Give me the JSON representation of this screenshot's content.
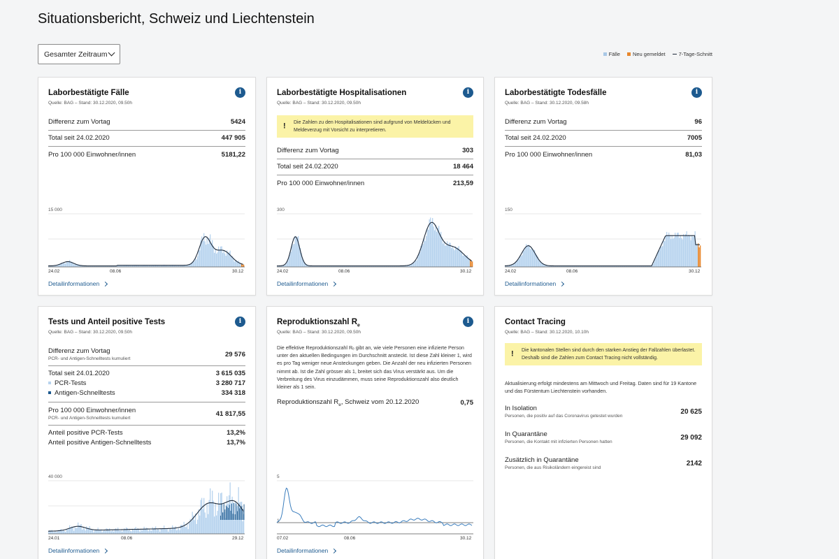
{
  "page": {
    "title": "Situationsbericht, Schweiz und Liechtenstein"
  },
  "filter": {
    "selected": "Gesamter Zeitraum"
  },
  "legend": [
    {
      "label": "Fälle",
      "color": "#a9c8e6"
    },
    {
      "label": "Neu gemeldet",
      "color": "#e8872c"
    },
    {
      "label": "7-Tage-Schnitt",
      "color": "#1e2a3a"
    }
  ],
  "colors": {
    "bar": "#b7d3ee",
    "line": "#1e2a3a",
    "new": "#e8872c",
    "accent": "#1d5a8f",
    "warning_bg": "#fbf3a7"
  },
  "detail_label": "Detailinformationen",
  "cases": {
    "title": "Laborbestätigte Fälle",
    "source": "Quelle: BAG – Stand: 30.12.2020, 09.50h",
    "rows": [
      {
        "label": "Differenz zum Vortag",
        "value": "5424"
      },
      {
        "label": "Total seit 24.02.2020",
        "value": "447 905"
      },
      {
        "label": "Pro 100 000 Einwohner/innen",
        "value": "5181,22"
      }
    ],
    "chart": {
      "ymax": "15 000",
      "x_ticks": [
        "24.02",
        "08.06",
        "30.12"
      ]
    }
  },
  "hosp": {
    "title": "Laborbestätigte Hospitalisationen",
    "source": "Quelle: BAG – Stand: 30.12.2020, 09.50h",
    "warning": "Die Zahlen zu den Hospitalisationen sind aufgrund von Meldelücken und Meldeverzug mit Vorsicht zu interpretieren.",
    "rows": [
      {
        "label": "Differenz zum Vortag",
        "value": "303"
      },
      {
        "label": "Total seit 24.02.2020",
        "value": "18 464"
      },
      {
        "label": "Pro 100 000 Einwohner/innen",
        "value": "213,59"
      }
    ],
    "chart": {
      "ymax": "300",
      "x_ticks": [
        "24.02",
        "08.06",
        "30.12"
      ]
    }
  },
  "deaths": {
    "title": "Laborbestätigte Todesfälle",
    "source": "Quelle: BAG – Stand: 30.12.2020, 09.58h",
    "rows": [
      {
        "label": "Differenz zum Vortag",
        "value": "96"
      },
      {
        "label": "Total seit 24.02.2020",
        "value": "7005"
      },
      {
        "label": "Pro 100 000 Einwohner/innen",
        "value": "81,03"
      }
    ],
    "chart": {
      "ymax": "150",
      "x_ticks": [
        "24.02",
        "08.06",
        "30.12"
      ]
    }
  },
  "tests": {
    "title": "Tests und Anteil positive Tests",
    "source": "Quelle: BAG – Stand: 30.12.2020, 09.50h",
    "diff_label": "Differenz zum Vortag",
    "diff_sub": "PCR- und Antigen-Schnelltests kumuliert",
    "diff_value": "29 576",
    "total_label": "Total seit 24.01.2020",
    "total_value": "3 615 035",
    "pcr_label": "PCR-Tests",
    "pcr_value": "3 280 717",
    "antigen_label": "Antigen-Schnelltests",
    "antigen_value": "334 318",
    "per100k_label": "Pro 100 000 Einwohner/innen",
    "per100k_sub": "PCR- und Antigen-Schnelltests kumuliert",
    "per100k_value": "41 817,55",
    "share_pcr_label": "Anteil positive PCR-Tests",
    "share_pcr_value": "13,2%",
    "share_ag_label": "Anteil positive Antigen-Schnelltests",
    "share_ag_value": "13,7%",
    "chart": {
      "ymax": "40 000",
      "x_ticks": [
        "24.01",
        "08.06",
        "29.12"
      ]
    }
  },
  "repro": {
    "title_main": "Reproduktionszahl R",
    "title_sub": "e",
    "source": "Quelle: BAG – Stand: 30.12.2020, 09.50h",
    "description": "Die effektive Reproduktionszahl Rₑ gibt an, wie viele Personen eine infizierte Person unter den aktuellen Bedingungen im Durchschnitt ansteckt. Ist diese Zahl kleiner 1, wird es pro Tag weniger neue Ansteckungen geben. Die Anzahl der neu infizierten Personen nimmt ab. Ist die Zahl grösser als 1, breitet sich das Virus verstärkt aus. Um die Verbreitung des Virus einzudämmen, muss seine Reproduktionszahl also deutlich kleiner als 1 sein.",
    "value_label_main": "Reproduktionszahl R",
    "value_label_sub": "e",
    "value_label_rest": ", Schweiz vom 20.12.2020",
    "value": "0,75",
    "chart": {
      "ymax": "5",
      "yref": "1",
      "x_ticks": [
        "07.02",
        "08.06",
        "30.12"
      ]
    }
  },
  "tracing": {
    "title": "Contact Tracing",
    "source": "Quelle: BAG – Stand: 30.12.2020, 10.10h",
    "warning": "Die kantonalen Stellen sind durch den starken Anstieg der Fallzahlen überlastet. Deshalb sind die Zahlen zum Contact Tracing nicht vollständig.",
    "update_note": "Aktualisierung erfolgt mindestens am Mittwoch und Freitag. Daten sind für 19 Kantone und das Fürstentum Liechtenstein vorhanden.",
    "rows": [
      {
        "label": "In Isolation",
        "sub": "Personen, die positiv auf das Coronavirus getestet wurden",
        "value": "20 625"
      },
      {
        "label": "In Quarantäne",
        "sub": "Personen, die Kontakt mit infizierten Personen hatten",
        "value": "29 092"
      },
      {
        "label": "Zusätzlich in Quarantäne",
        "sub": "Personen, die aus Risikoländern eingereist sind",
        "value": "2142"
      }
    ]
  }
}
